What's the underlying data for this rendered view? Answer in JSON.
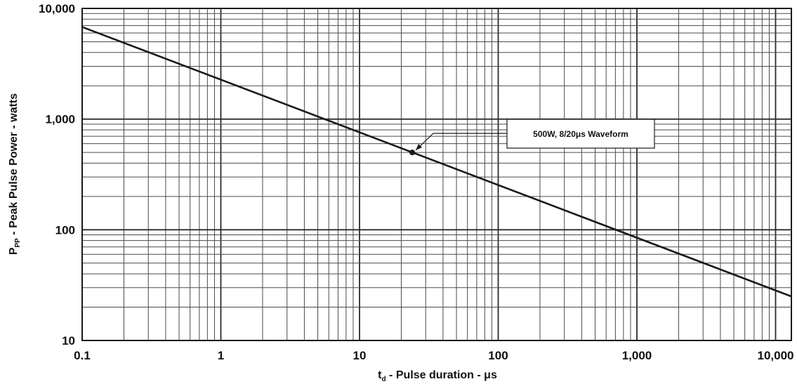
{
  "chart_data": {
    "type": "line",
    "x_scale": "log",
    "y_scale": "log",
    "xlim": [
      0.1,
      13000
    ],
    "ylim": [
      10,
      10000
    ],
    "grid": true,
    "x_ticks": [
      0.1,
      1,
      10,
      100,
      1000,
      10000
    ],
    "x_tick_labels": [
      "0.1",
      "1",
      "10",
      "100",
      "1,000",
      "10,000"
    ],
    "y_ticks": [
      10,
      100,
      1000,
      10000
    ],
    "y_tick_labels": [
      "10",
      "100",
      "1,000",
      "10,000"
    ],
    "xlabel": {
      "main": "t",
      "sub": "d",
      "rest": " - Pulse duration - μs"
    },
    "ylabel": {
      "main": "P",
      "sub": "PP",
      "rest": " - Peak Pulse Power - watts"
    },
    "series": [
      {
        "x": [
          0.1,
          13000
        ],
        "y": [
          6800,
          25
        ]
      }
    ],
    "marker": {
      "x": 24,
      "y": 500
    },
    "annotation": {
      "text": "500W, 8/20μs Waveform"
    }
  }
}
